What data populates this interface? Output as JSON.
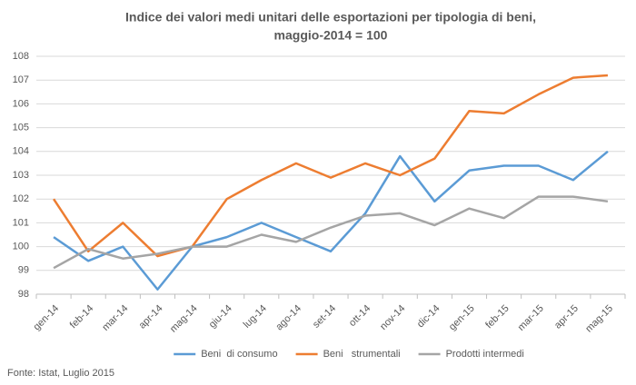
{
  "chart_data": {
    "type": "line",
    "title": [
      "Indice dei valori medi unitari delle esportazioni per tipologia di beni,",
      "maggio-2014 = 100"
    ],
    "categories": [
      "gen-14",
      "feb-14",
      "mar-14",
      "apr-14",
      "mag-14",
      "giu-14",
      "lug-14",
      "ago-14",
      "set-14",
      "ott-14",
      "nov-14",
      "dic-14",
      "gen-15",
      "feb-15",
      "mar-15",
      "apr-15",
      "mag-15"
    ],
    "series": [
      {
        "name": "Beni  di consumo",
        "color": "#5b9bd5",
        "values": [
          100.4,
          99.4,
          100.0,
          98.2,
          100.0,
          100.4,
          101.0,
          100.4,
          99.8,
          101.4,
          103.8,
          101.9,
          103.2,
          103.4,
          103.4,
          102.8,
          104.0
        ]
      },
      {
        "name": "Beni   strumentali",
        "color": "#ed7d31",
        "values": [
          102.0,
          99.8,
          101.0,
          99.6,
          100.0,
          102.0,
          102.8,
          103.5,
          102.9,
          103.5,
          103.0,
          103.7,
          105.7,
          105.6,
          106.4,
          107.1,
          107.2
        ]
      },
      {
        "name": "Prodotti intermedi",
        "color": "#a5a5a5",
        "values": [
          99.1,
          99.9,
          99.5,
          99.7,
          100.0,
          100.0,
          100.5,
          100.2,
          100.8,
          101.3,
          101.4,
          100.9,
          101.6,
          101.2,
          102.1,
          102.1,
          101.9
        ]
      }
    ],
    "ylim": [
      98,
      108
    ],
    "yticks": [
      98,
      99,
      100,
      101,
      102,
      103,
      104,
      105,
      106,
      107,
      108
    ],
    "grid": true,
    "legend": "bottom",
    "source": "Fonte: Istat, Luglio 2015"
  }
}
